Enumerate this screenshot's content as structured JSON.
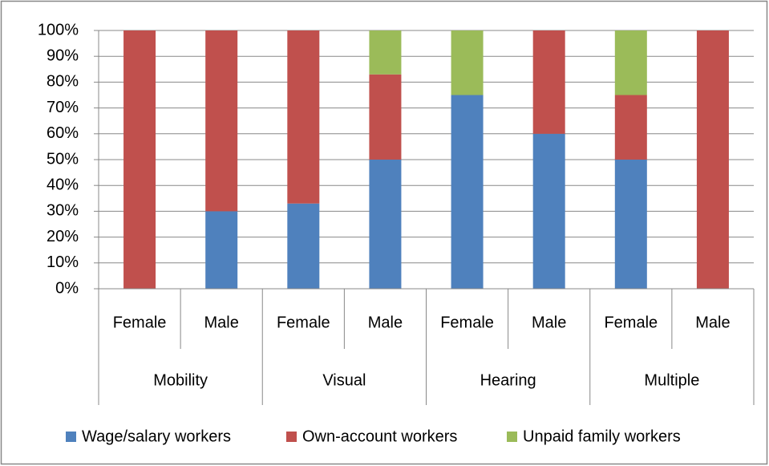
{
  "chart_data": {
    "type": "stacked_bar",
    "categories": [
      "Female",
      "Male",
      "Female",
      "Male",
      "Female",
      "Male",
      "Female",
      "Male"
    ],
    "groups": [
      "Mobility",
      "Visual",
      "Hearing",
      "Multiple"
    ],
    "series": [
      {
        "name": "Wage/salary workers",
        "color": "#4f81bd",
        "values": [
          0,
          30,
          33,
          50,
          75,
          60,
          50,
          0
        ]
      },
      {
        "name": "Own-account workers",
        "color": "#c0504d",
        "values": [
          100,
          70,
          67,
          33,
          0,
          40,
          25,
          100
        ]
      },
      {
        "name": "Unpaid family workers",
        "color": "#9bbb59",
        "values": [
          0,
          0,
          0,
          17,
          25,
          0,
          25,
          0
        ]
      }
    ],
    "ylim": [
      0,
      100
    ],
    "yticks": [
      {
        "value": 0,
        "label": "0%"
      },
      {
        "value": 10,
        "label": "10%"
      },
      {
        "value": 20,
        "label": "20%"
      },
      {
        "value": 30,
        "label": "30%"
      },
      {
        "value": 40,
        "label": "40%"
      },
      {
        "value": 50,
        "label": "50%"
      },
      {
        "value": 60,
        "label": "60%"
      },
      {
        "value": 70,
        "label": "70%"
      },
      {
        "value": 80,
        "label": "80%"
      },
      {
        "value": 90,
        "label": "90%"
      },
      {
        "value": 100,
        "label": "100%"
      }
    ],
    "grid": true,
    "legend": "bottom"
  }
}
